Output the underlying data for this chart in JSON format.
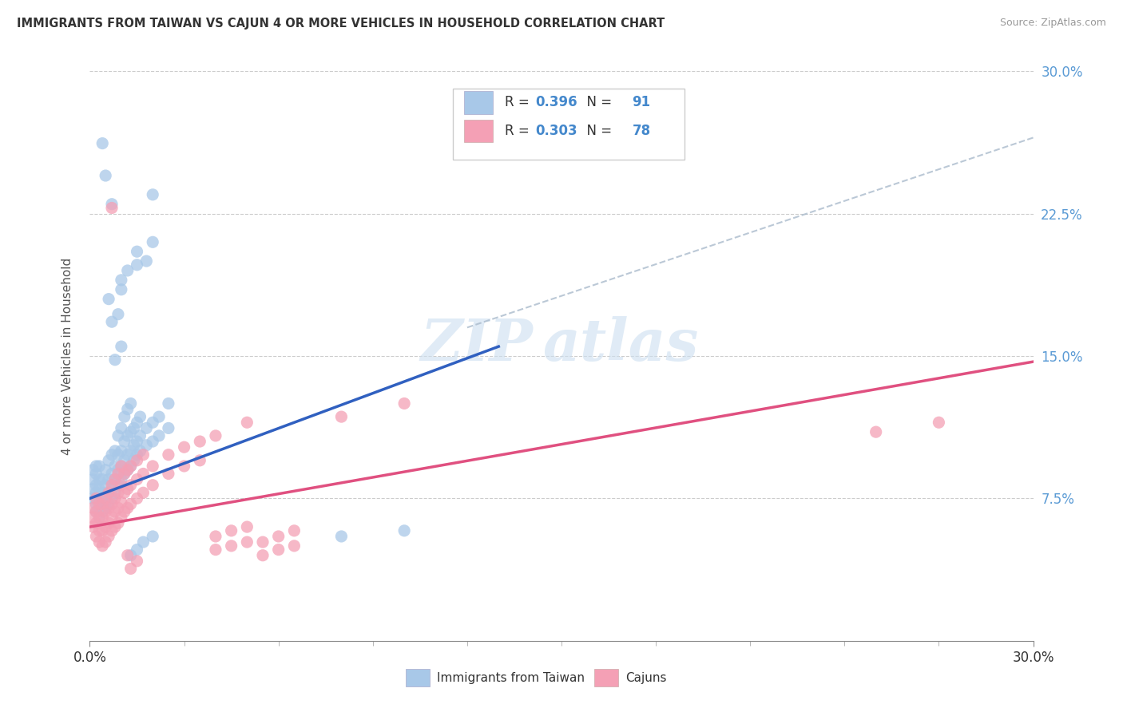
{
  "title": "IMMIGRANTS FROM TAIWAN VS CAJUN 4 OR MORE VEHICLES IN HOUSEHOLD CORRELATION CHART",
  "source": "Source: ZipAtlas.com",
  "ylabel": "4 or more Vehicles in Household",
  "xlim": [
    0.0,
    0.3
  ],
  "ylim": [
    0.0,
    0.3
  ],
  "yticks": [
    0.075,
    0.15,
    0.225,
    0.3
  ],
  "ytick_labels": [
    "7.5%",
    "15.0%",
    "22.5%",
    "30.0%"
  ],
  "taiwan_R": "0.396",
  "taiwan_N": "91",
  "cajun_R": "0.303",
  "cajun_N": "78",
  "taiwan_color": "#a8c8e8",
  "cajun_color": "#f4a0b5",
  "taiwan_line_color": "#3060c0",
  "cajun_line_color": "#e05080",
  "legend_label_taiwan": "Immigrants from Taiwan",
  "legend_label_cajun": "Cajuns",
  "watermark_zip": "ZIP",
  "watermark_atlas": "atlas",
  "taiwan_line": {
    "x0": 0.0,
    "y0": 0.075,
    "x1": 0.13,
    "y1": 0.155
  },
  "cajun_line": {
    "x0": 0.0,
    "y0": 0.06,
    "x1": 0.3,
    "y1": 0.147
  },
  "dash_line": {
    "x0": 0.12,
    "y0": 0.165,
    "x1": 0.3,
    "y1": 0.265
  },
  "taiwan_points": [
    [
      0.001,
      0.075
    ],
    [
      0.001,
      0.08
    ],
    [
      0.001,
      0.085
    ],
    [
      0.001,
      0.09
    ],
    [
      0.002,
      0.068
    ],
    [
      0.002,
      0.072
    ],
    [
      0.002,
      0.078
    ],
    [
      0.002,
      0.082
    ],
    [
      0.002,
      0.088
    ],
    [
      0.002,
      0.092
    ],
    [
      0.003,
      0.065
    ],
    [
      0.003,
      0.07
    ],
    [
      0.003,
      0.075
    ],
    [
      0.003,
      0.08
    ],
    [
      0.003,
      0.085
    ],
    [
      0.003,
      0.092
    ],
    [
      0.004,
      0.068
    ],
    [
      0.004,
      0.073
    ],
    [
      0.004,
      0.078
    ],
    [
      0.004,
      0.085
    ],
    [
      0.005,
      0.07
    ],
    [
      0.005,
      0.075
    ],
    [
      0.005,
      0.082
    ],
    [
      0.005,
      0.09
    ],
    [
      0.006,
      0.072
    ],
    [
      0.006,
      0.078
    ],
    [
      0.006,
      0.085
    ],
    [
      0.006,
      0.095
    ],
    [
      0.007,
      0.075
    ],
    [
      0.007,
      0.08
    ],
    [
      0.007,
      0.088
    ],
    [
      0.007,
      0.098
    ],
    [
      0.008,
      0.078
    ],
    [
      0.008,
      0.085
    ],
    [
      0.008,
      0.092
    ],
    [
      0.008,
      0.1
    ],
    [
      0.009,
      0.082
    ],
    [
      0.009,
      0.09
    ],
    [
      0.009,
      0.098
    ],
    [
      0.009,
      0.108
    ],
    [
      0.01,
      0.085
    ],
    [
      0.01,
      0.092
    ],
    [
      0.01,
      0.1
    ],
    [
      0.01,
      0.112
    ],
    [
      0.011,
      0.088
    ],
    [
      0.011,
      0.095
    ],
    [
      0.011,
      0.105
    ],
    [
      0.011,
      0.118
    ],
    [
      0.012,
      0.09
    ],
    [
      0.012,
      0.098
    ],
    [
      0.012,
      0.108
    ],
    [
      0.012,
      0.122
    ],
    [
      0.013,
      0.092
    ],
    [
      0.013,
      0.1
    ],
    [
      0.013,
      0.11
    ],
    [
      0.013,
      0.125
    ],
    [
      0.014,
      0.095
    ],
    [
      0.014,
      0.103
    ],
    [
      0.014,
      0.112
    ],
    [
      0.015,
      0.098
    ],
    [
      0.015,
      0.105
    ],
    [
      0.015,
      0.115
    ],
    [
      0.016,
      0.1
    ],
    [
      0.016,
      0.108
    ],
    [
      0.016,
      0.118
    ],
    [
      0.018,
      0.103
    ],
    [
      0.018,
      0.112
    ],
    [
      0.02,
      0.105
    ],
    [
      0.02,
      0.115
    ],
    [
      0.022,
      0.108
    ],
    [
      0.022,
      0.118
    ],
    [
      0.025,
      0.112
    ],
    [
      0.025,
      0.125
    ],
    [
      0.008,
      0.148
    ],
    [
      0.01,
      0.155
    ],
    [
      0.006,
      0.18
    ],
    [
      0.01,
      0.185
    ],
    [
      0.01,
      0.19
    ],
    [
      0.012,
      0.195
    ],
    [
      0.015,
      0.198
    ],
    [
      0.015,
      0.205
    ],
    [
      0.018,
      0.2
    ],
    [
      0.02,
      0.21
    ],
    [
      0.007,
      0.168
    ],
    [
      0.009,
      0.172
    ],
    [
      0.004,
      0.262
    ],
    [
      0.005,
      0.245
    ],
    [
      0.007,
      0.23
    ],
    [
      0.02,
      0.235
    ],
    [
      0.013,
      0.045
    ],
    [
      0.015,
      0.048
    ],
    [
      0.017,
      0.052
    ],
    [
      0.02,
      0.055
    ],
    [
      0.08,
      0.055
    ],
    [
      0.1,
      0.058
    ]
  ],
  "cajun_points": [
    [
      0.001,
      0.06
    ],
    [
      0.001,
      0.065
    ],
    [
      0.001,
      0.07
    ],
    [
      0.002,
      0.055
    ],
    [
      0.002,
      0.062
    ],
    [
      0.002,
      0.068
    ],
    [
      0.002,
      0.075
    ],
    [
      0.003,
      0.052
    ],
    [
      0.003,
      0.058
    ],
    [
      0.003,
      0.065
    ],
    [
      0.003,
      0.072
    ],
    [
      0.004,
      0.05
    ],
    [
      0.004,
      0.058
    ],
    [
      0.004,
      0.065
    ],
    [
      0.004,
      0.072
    ],
    [
      0.005,
      0.052
    ],
    [
      0.005,
      0.06
    ],
    [
      0.005,
      0.068
    ],
    [
      0.005,
      0.075
    ],
    [
      0.006,
      0.055
    ],
    [
      0.006,
      0.062
    ],
    [
      0.006,
      0.07
    ],
    [
      0.006,
      0.078
    ],
    [
      0.007,
      0.058
    ],
    [
      0.007,
      0.065
    ],
    [
      0.007,
      0.072
    ],
    [
      0.007,
      0.082
    ],
    [
      0.008,
      0.06
    ],
    [
      0.008,
      0.068
    ],
    [
      0.008,
      0.075
    ],
    [
      0.008,
      0.085
    ],
    [
      0.009,
      0.062
    ],
    [
      0.009,
      0.07
    ],
    [
      0.009,
      0.078
    ],
    [
      0.009,
      0.088
    ],
    [
      0.01,
      0.065
    ],
    [
      0.01,
      0.073
    ],
    [
      0.01,
      0.082
    ],
    [
      0.01,
      0.092
    ],
    [
      0.011,
      0.068
    ],
    [
      0.011,
      0.078
    ],
    [
      0.011,
      0.088
    ],
    [
      0.012,
      0.07
    ],
    [
      0.012,
      0.08
    ],
    [
      0.012,
      0.09
    ],
    [
      0.013,
      0.072
    ],
    [
      0.013,
      0.082
    ],
    [
      0.013,
      0.092
    ],
    [
      0.015,
      0.075
    ],
    [
      0.015,
      0.085
    ],
    [
      0.015,
      0.095
    ],
    [
      0.017,
      0.078
    ],
    [
      0.017,
      0.088
    ],
    [
      0.017,
      0.098
    ],
    [
      0.02,
      0.082
    ],
    [
      0.02,
      0.092
    ],
    [
      0.025,
      0.088
    ],
    [
      0.025,
      0.098
    ],
    [
      0.03,
      0.092
    ],
    [
      0.03,
      0.102
    ],
    [
      0.035,
      0.095
    ],
    [
      0.035,
      0.105
    ],
    [
      0.04,
      0.048
    ],
    [
      0.04,
      0.055
    ],
    [
      0.045,
      0.05
    ],
    [
      0.045,
      0.058
    ],
    [
      0.05,
      0.052
    ],
    [
      0.05,
      0.06
    ],
    [
      0.055,
      0.045
    ],
    [
      0.055,
      0.052
    ],
    [
      0.06,
      0.048
    ],
    [
      0.06,
      0.055
    ],
    [
      0.065,
      0.05
    ],
    [
      0.065,
      0.058
    ],
    [
      0.04,
      0.108
    ],
    [
      0.05,
      0.115
    ],
    [
      0.08,
      0.118
    ],
    [
      0.1,
      0.125
    ],
    [
      0.25,
      0.11
    ],
    [
      0.27,
      0.115
    ],
    [
      0.007,
      0.228
    ],
    [
      0.012,
      0.045
    ],
    [
      0.013,
      0.038
    ],
    [
      0.015,
      0.042
    ]
  ]
}
